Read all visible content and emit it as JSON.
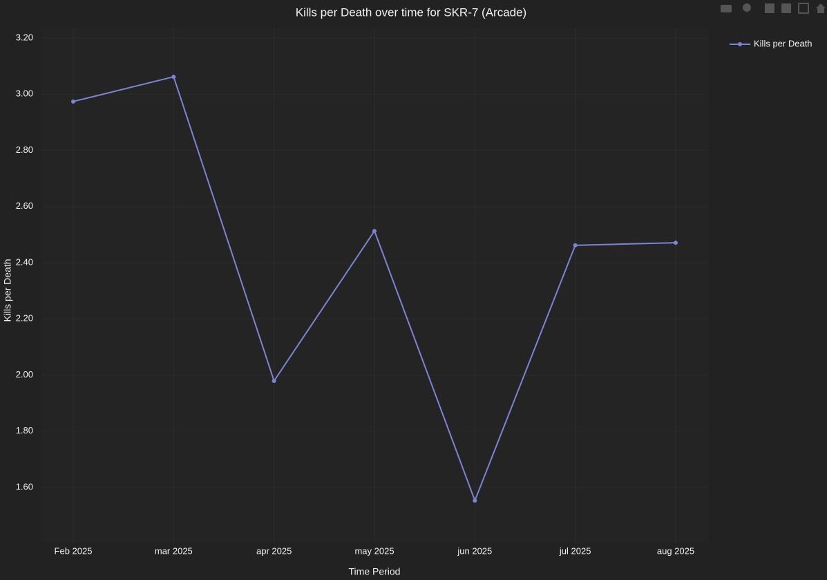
{
  "chart_data": {
    "type": "line",
    "title": "Kills per Death over time for SKR-7 (Arcade)",
    "x_label": "Time Period",
    "y_label": "Kills per Death",
    "categories": [
      "Feb 2025",
      "mar 2025",
      "apr 2025",
      "may 2025",
      "jun 2025",
      "jul 2025",
      "aug 2025"
    ],
    "series": [
      {
        "name": "Kills per Death",
        "color": "#7d84d4",
        "values": [
          2.974,
          3.062,
          1.979,
          2.513,
          1.553,
          2.462,
          2.471
        ]
      }
    ],
    "ylim": [
      1.403,
      3.237
    ],
    "yticks": [
      {
        "value": 1.6,
        "label": "1.60"
      },
      {
        "value": 1.8,
        "label": "1.80"
      },
      {
        "value": 2.0,
        "label": "2.00"
      },
      {
        "value": 2.2,
        "label": "2.20"
      },
      {
        "value": 2.4,
        "label": "2.40"
      },
      {
        "value": 2.6,
        "label": "2.60"
      },
      {
        "value": 2.8,
        "label": "2.80"
      },
      {
        "value": 3.0,
        "label": "3.00"
      },
      {
        "value": 3.2,
        "label": "3.20"
      }
    ],
    "grid": true,
    "legend": "top-right"
  }
}
